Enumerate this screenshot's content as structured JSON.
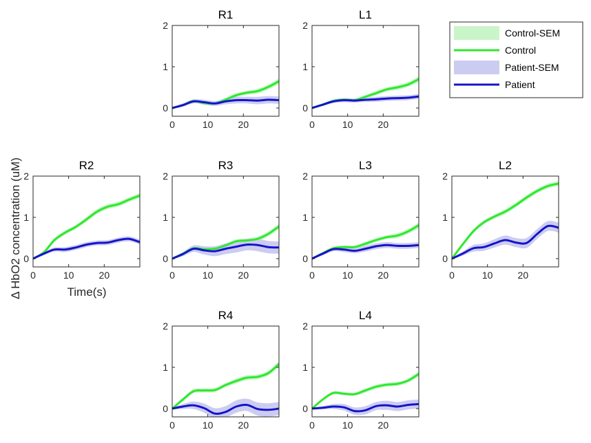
{
  "chart_data": {
    "type": "line",
    "ylabel": "Δ HbO2 concentration (uM)",
    "xlabel": "Time(s)",
    "xlim": [
      0,
      30
    ],
    "ylim": [
      -0.2,
      2
    ],
    "xticks": [
      0,
      10,
      20
    ],
    "yticks": [
      0,
      1,
      2
    ],
    "colors": {
      "control": "#2ee82e",
      "control_sem": "#c9f5c9",
      "patient": "#1414c8",
      "patient_sem": "#ccccf2"
    },
    "legend": {
      "placement": "top-right",
      "entries": [
        "Control-SEM",
        "Control",
        "Patient-SEM",
        "Patient"
      ]
    },
    "x": [
      0,
      3,
      6,
      9,
      12,
      15,
      18,
      21,
      24,
      27,
      30
    ],
    "panels": [
      {
        "title": "R1",
        "control": [
          0,
          0.07,
          0.17,
          0.12,
          0.11,
          0.2,
          0.31,
          0.37,
          0.41,
          0.51,
          0.65
        ],
        "control_sem": [
          0.02,
          0.03,
          0.04,
          0.04,
          0.04,
          0.05,
          0.05,
          0.05,
          0.06,
          0.06,
          0.07
        ],
        "patient": [
          0,
          0.07,
          0.16,
          0.14,
          0.11,
          0.16,
          0.19,
          0.19,
          0.18,
          0.2,
          0.19
        ],
        "patient_sem": [
          0.02,
          0.04,
          0.05,
          0.06,
          0.06,
          0.07,
          0.08,
          0.08,
          0.09,
          0.09,
          0.09
        ]
      },
      {
        "title": "L1",
        "control": [
          0,
          0.08,
          0.17,
          0.2,
          0.19,
          0.27,
          0.36,
          0.45,
          0.5,
          0.57,
          0.7
        ],
        "control_sem": [
          0.02,
          0.03,
          0.04,
          0.04,
          0.04,
          0.05,
          0.05,
          0.05,
          0.06,
          0.06,
          0.07
        ],
        "patient": [
          0,
          0.08,
          0.16,
          0.19,
          0.18,
          0.2,
          0.21,
          0.23,
          0.24,
          0.25,
          0.28
        ],
        "patient_sem": [
          0.02,
          0.03,
          0.04,
          0.05,
          0.05,
          0.05,
          0.06,
          0.06,
          0.06,
          0.06,
          0.06
        ]
      },
      {
        "title": "R2",
        "control": [
          0,
          0.15,
          0.45,
          0.63,
          0.77,
          0.95,
          1.14,
          1.26,
          1.32,
          1.43,
          1.53
        ],
        "control_sem": [
          0.02,
          0.04,
          0.05,
          0.05,
          0.05,
          0.06,
          0.06,
          0.06,
          0.06,
          0.06,
          0.06
        ],
        "patient": [
          0,
          0.12,
          0.22,
          0.22,
          0.27,
          0.34,
          0.38,
          0.39,
          0.45,
          0.48,
          0.4
        ],
        "patient_sem": [
          0.02,
          0.04,
          0.05,
          0.06,
          0.06,
          0.06,
          0.06,
          0.06,
          0.06,
          0.06,
          0.06
        ]
      },
      {
        "title": "R3",
        "control": [
          0,
          0.12,
          0.25,
          0.23,
          0.24,
          0.32,
          0.42,
          0.44,
          0.48,
          0.6,
          0.78
        ],
        "control_sem": [
          0.02,
          0.03,
          0.04,
          0.04,
          0.04,
          0.05,
          0.05,
          0.05,
          0.06,
          0.06,
          0.07
        ],
        "patient": [
          0,
          0.11,
          0.24,
          0.2,
          0.18,
          0.24,
          0.29,
          0.34,
          0.33,
          0.28,
          0.27
        ],
        "patient_sem": [
          0.02,
          0.05,
          0.08,
          0.1,
          0.12,
          0.13,
          0.14,
          0.14,
          0.15,
          0.15,
          0.15
        ]
      },
      {
        "title": "L3",
        "control": [
          0,
          0.13,
          0.25,
          0.28,
          0.28,
          0.36,
          0.45,
          0.52,
          0.56,
          0.66,
          0.81
        ],
        "control_sem": [
          0.02,
          0.03,
          0.04,
          0.04,
          0.04,
          0.05,
          0.05,
          0.05,
          0.06,
          0.06,
          0.07
        ],
        "patient": [
          0,
          0.12,
          0.23,
          0.22,
          0.19,
          0.24,
          0.3,
          0.33,
          0.31,
          0.31,
          0.33
        ],
        "patient_sem": [
          0.02,
          0.04,
          0.05,
          0.06,
          0.06,
          0.07,
          0.07,
          0.07,
          0.07,
          0.07,
          0.07
        ]
      },
      {
        "title": "L2",
        "control": [
          0,
          0.34,
          0.66,
          0.88,
          1.02,
          1.14,
          1.3,
          1.48,
          1.64,
          1.76,
          1.82
        ],
        "control_sem": [
          0.02,
          0.04,
          0.05,
          0.05,
          0.05,
          0.06,
          0.06,
          0.06,
          0.06,
          0.06,
          0.06
        ],
        "patient": [
          0,
          0.12,
          0.25,
          0.28,
          0.37,
          0.45,
          0.39,
          0.38,
          0.6,
          0.79,
          0.75
        ],
        "patient_sem": [
          0.02,
          0.05,
          0.08,
          0.09,
          0.1,
          0.11,
          0.11,
          0.12,
          0.12,
          0.12,
          0.12
        ]
      },
      {
        "title": "R4",
        "control": [
          0,
          0.22,
          0.42,
          0.44,
          0.45,
          0.57,
          0.67,
          0.75,
          0.77,
          0.86,
          1.08
        ],
        "control_sem": [
          0.02,
          0.04,
          0.05,
          0.05,
          0.05,
          0.05,
          0.06,
          0.06,
          0.06,
          0.06,
          0.06
        ],
        "patient": [
          0,
          0.05,
          0.08,
          0.01,
          -0.12,
          -0.08,
          0.05,
          0.09,
          -0.01,
          -0.03,
          0.0
        ],
        "patient_sem": [
          0.02,
          0.06,
          0.09,
          0.11,
          0.13,
          0.14,
          0.15,
          0.15,
          0.16,
          0.16,
          0.16
        ]
      },
      {
        "title": "L4",
        "control": [
          0,
          0.22,
          0.38,
          0.36,
          0.35,
          0.44,
          0.53,
          0.58,
          0.6,
          0.68,
          0.84
        ],
        "control_sem": [
          0.02,
          0.03,
          0.04,
          0.04,
          0.04,
          0.05,
          0.05,
          0.05,
          0.05,
          0.05,
          0.06
        ],
        "patient": [
          0,
          0.02,
          0.05,
          0.03,
          -0.06,
          -0.04,
          0.06,
          0.08,
          0.05,
          0.09,
          0.11
        ],
        "patient_sem": [
          0.02,
          0.04,
          0.06,
          0.08,
          0.09,
          0.1,
          0.1,
          0.11,
          0.11,
          0.11,
          0.11
        ]
      }
    ]
  }
}
